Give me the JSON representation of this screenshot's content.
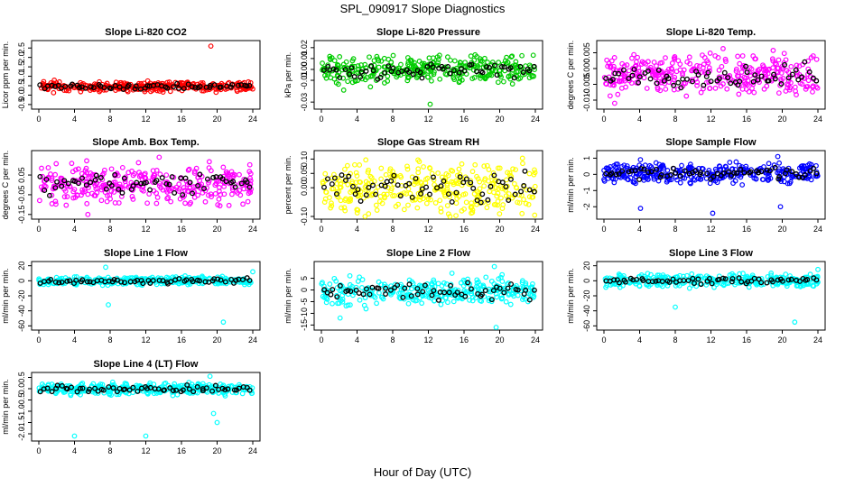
{
  "figure": {
    "title": "SPL_090917  Slope Diagnostics",
    "xlabel": "Hour of Day (UTC)"
  },
  "chart_data": [
    {
      "type": "scatter",
      "title": "Slope Li-820 CO2",
      "ylabel": "Licor ppm per min.",
      "color": "#ff0000",
      "xlim": [
        0,
        24
      ],
      "ylim": [
        -0.6,
        2.75
      ],
      "yticks": [
        "-0.5",
        "0.0",
        "0.5",
        "1.0",
        "1.5",
        "2.0",
        "2.5"
      ],
      "ytick_values": [
        -0.5,
        0,
        0.5,
        1,
        1.5,
        2,
        2.5
      ],
      "xticks": [
        0,
        4,
        8,
        12,
        16,
        20,
        24
      ],
      "mean": 0.45,
      "spread": 0.12,
      "outliers": [
        [
          19.3,
          2.6
        ]
      ],
      "seed": 11
    },
    {
      "type": "scatter",
      "title": "Slope Li-820 Pressure",
      "ylabel": "kPa per min.",
      "color": "#00cc00",
      "xlim": [
        0,
        24
      ],
      "ylim": [
        -0.034,
        0.024
      ],
      "yticks": [
        "-0.03",
        "-0.01",
        "0.00",
        "0.01",
        "0.02"
      ],
      "ytick_values": [
        -0.03,
        -0.01,
        0,
        0.01,
        0.02
      ],
      "xticks": [
        0,
        4,
        8,
        12,
        16,
        20,
        24
      ],
      "mean": 0.0,
      "spread": 0.006,
      "outliers": [
        [
          12.2,
          -0.032
        ],
        [
          5.5,
          -0.016
        ],
        [
          2.5,
          -0.019
        ]
      ],
      "seed": 23
    },
    {
      "type": "scatter",
      "title": "Slope Li-820 Temp.",
      "ylabel": "degrees C per min.",
      "color": "#ff00ff",
      "xlim": [
        0,
        24
      ],
      "ylim": [
        -0.012,
        0.008
      ],
      "yticks": [
        "-0.010",
        "-0.005",
        "0.000",
        "0.005"
      ],
      "ytick_values": [
        -0.01,
        -0.005,
        0,
        0.005
      ],
      "xticks": [
        0,
        4,
        8,
        12,
        16,
        20,
        24
      ],
      "mean": -0.002,
      "spread": 0.003,
      "outliers": [
        [
          1.2,
          -0.011
        ]
      ],
      "seed": 37
    },
    {
      "type": "scatter",
      "title": "Slope Amb. Box Temp.",
      "ylabel": "degrees C per min.",
      "color": "#ff00ff",
      "xlim": [
        0,
        24
      ],
      "ylim": [
        -0.16,
        0.16
      ],
      "yticks": [
        "-0.15",
        "-0.05",
        "0.05"
      ],
      "ytick_values": [
        -0.15,
        -0.05,
        0.05
      ],
      "xticks": [
        0,
        4,
        8,
        12,
        16,
        20,
        24
      ],
      "mean": 0.0,
      "spread": 0.045,
      "outliers": [
        [
          5.5,
          -0.15
        ],
        [
          13.5,
          0.14
        ]
      ],
      "seed": 41
    },
    {
      "type": "scatter",
      "title": "Slope Gas Stream RH",
      "ylabel": "percent per min.",
      "color": "#ffff00",
      "xlim": [
        0,
        24
      ],
      "ylim": [
        -0.1,
        0.12
      ],
      "yticks": [
        "-0.10",
        "0.00",
        "0.05",
        "0.10"
      ],
      "ytick_values": [
        -0.1,
        0,
        0.05,
        0.1
      ],
      "xticks": [
        0,
        4,
        8,
        12,
        16,
        20,
        24
      ],
      "mean": 0.0,
      "spread": 0.045,
      "outliers": [
        [
          22.5,
          -0.09
        ]
      ],
      "seed": 53
    },
    {
      "type": "scatter",
      "title": "Slope Sample Flow",
      "ylabel": "ml/min per min.",
      "color": "#0000ff",
      "xlim": [
        0,
        24
      ],
      "ylim": [
        -2.6,
        1.3
      ],
      "yticks": [
        "-2",
        "-1",
        "0",
        "1"
      ],
      "ytick_values": [
        -2,
        -1,
        0,
        1
      ],
      "xticks": [
        0,
        4,
        8,
        12,
        16,
        20,
        24
      ],
      "mean": 0.1,
      "spread": 0.3,
      "outliers": [
        [
          4.1,
          -2.1
        ],
        [
          12.2,
          -2.4
        ],
        [
          19.8,
          -2.0
        ],
        [
          19.5,
          1.1
        ]
      ],
      "seed": 67
    },
    {
      "type": "scatter",
      "title": "Slope Line 1 Flow",
      "ylabel": "ml/min per min.",
      "color": "#00ffff",
      "xlim": [
        0,
        24
      ],
      "ylim": [
        -62,
        22
      ],
      "yticks": [
        "-60",
        "-40",
        "-20",
        "0",
        "20"
      ],
      "ytick_values": [
        -60,
        -40,
        -20,
        0,
        20
      ],
      "xticks": [
        0,
        4,
        8,
        12,
        16,
        20,
        24
      ],
      "mean": 0,
      "spread": 2.5,
      "outliers": [
        [
          7.8,
          -32
        ],
        [
          20.7,
          -55
        ],
        [
          7.5,
          18
        ],
        [
          24,
          12
        ]
      ],
      "seed": 71
    },
    {
      "type": "scatter",
      "title": "Slope Line 2 Flow",
      "ylabel": "ml/min per min.",
      "color": "#00ffff",
      "xlim": [
        0,
        24
      ],
      "ylim": [
        -16,
        11
      ],
      "yticks": [
        "-15",
        "-10",
        "-5",
        "0",
        "5"
      ],
      "ytick_values": [
        -15,
        -10,
        -5,
        0,
        5
      ],
      "xticks": [
        0,
        4,
        8,
        12,
        16,
        20,
        24
      ],
      "mean": -0.5,
      "spread": 2.8,
      "outliers": [
        [
          2.1,
          -12
        ],
        [
          19.6,
          -16
        ],
        [
          19.4,
          10
        ]
      ],
      "seed": 83
    },
    {
      "type": "scatter",
      "title": "Slope Line 3 Flow",
      "ylabel": "ml/min per min.",
      "color": "#00ffff",
      "xlim": [
        0,
        24
      ],
      "ylim": [
        -62,
        22
      ],
      "yticks": [
        "-60",
        "-40",
        "-20",
        "0",
        "20"
      ],
      "ytick_values": [
        -60,
        -40,
        -20,
        0,
        20
      ],
      "xticks": [
        0,
        4,
        8,
        12,
        16,
        20,
        24
      ],
      "mean": 0,
      "spread": 4,
      "outliers": [
        [
          21.4,
          -55
        ],
        [
          8,
          -35
        ],
        [
          24,
          15
        ]
      ],
      "seed": 97
    },
    {
      "type": "scatter",
      "title": "Slope Line 4 (LT) Flow",
      "ylabel": "ml/min per min.",
      "color": "#00ffff",
      "xlim": [
        0,
        24
      ],
      "ylim": [
        -2.2,
        0.6
      ],
      "yticks": [
        "-2.0",
        "-1.5",
        "-1.0",
        "-0.5",
        "0.0",
        "0.5"
      ],
      "ytick_values": [
        -2,
        -1.5,
        -1,
        -0.5,
        0,
        0.5
      ],
      "xticks": [
        0,
        4,
        8,
        12,
        16,
        20,
        24
      ],
      "mean": 0,
      "spread": 0.12,
      "outliers": [
        [
          4,
          -2.1
        ],
        [
          12,
          -2.1
        ],
        [
          20,
          -1.5
        ],
        [
          19.6,
          -1.1
        ],
        [
          19.2,
          0.55
        ]
      ],
      "seed": 101
    }
  ]
}
